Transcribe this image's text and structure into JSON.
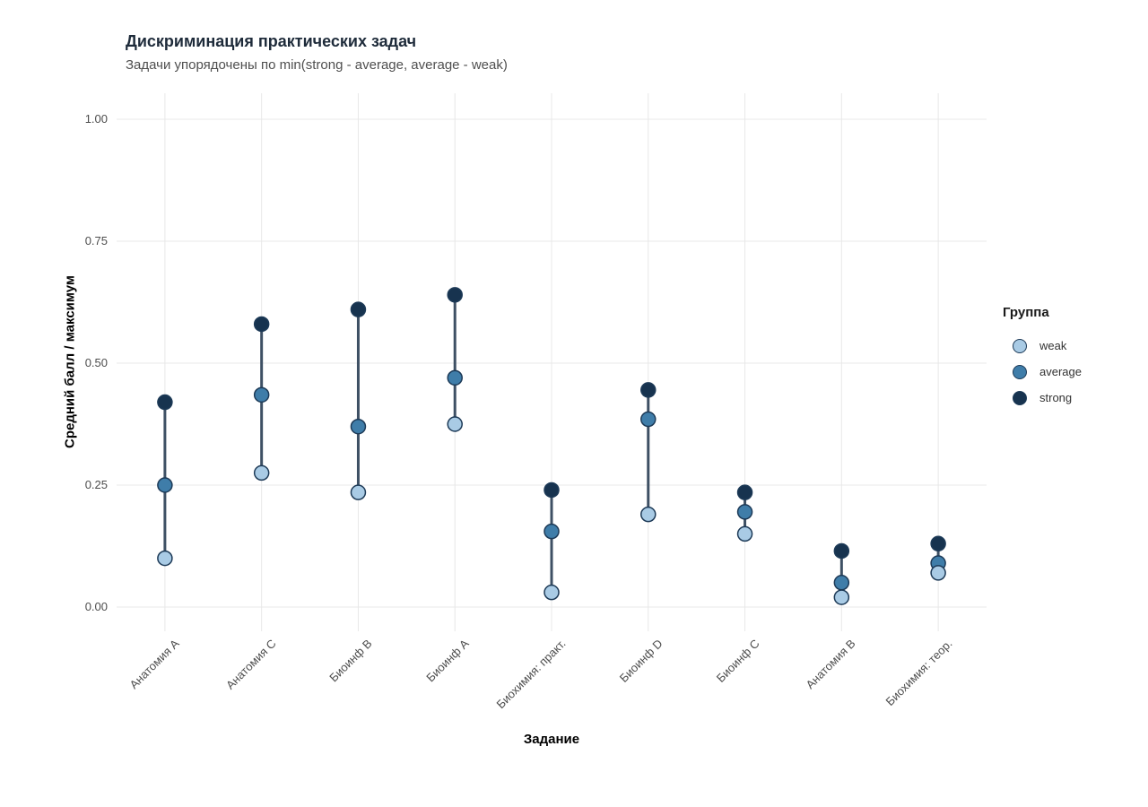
{
  "chart_data": {
    "type": "dumbbell",
    "title": "Дискриминация практических задач",
    "subtitle": "Задачи упорядочены по min(strong - average, average - weak)",
    "xlabel": "Задание",
    "ylabel": "Средний балл / максимум",
    "ylim": [
      0,
      1
    ],
    "y_ticks": [
      0,
      0.25,
      0.5,
      0.75,
      1
    ],
    "y_tick_labels": [
      "0.00",
      "0.25",
      "0.50",
      "0.75",
      "1.00"
    ],
    "categories": [
      "Анатомия A",
      "Анатомия C",
      "Биоинф B",
      "Биоинф A",
      "Биохимия: практ.",
      "Биоинф D",
      "Биоинф C",
      "Анатомия B",
      "Биохимия: теор."
    ],
    "series": [
      {
        "name": "weak",
        "color": "#a9cbe5",
        "values": [
          0.1,
          0.275,
          0.235,
          0.375,
          0.03,
          0.19,
          0.15,
          0.02,
          0.07
        ]
      },
      {
        "name": "average",
        "color": "#3f7da9",
        "values": [
          0.25,
          0.435,
          0.37,
          0.47,
          0.155,
          0.385,
          0.195,
          0.05,
          0.09
        ]
      },
      {
        "name": "strong",
        "color": "#17334f",
        "values": [
          0.42,
          0.58,
          0.61,
          0.64,
          0.24,
          0.445,
          0.235,
          0.115,
          0.13
        ]
      }
    ],
    "legend": {
      "title": "Группа",
      "position": "right"
    },
    "grid": true,
    "colors": {
      "grid_line": "#e8e8e8",
      "segment": "#3e5064",
      "point_stroke": "#1d3a57",
      "title_text": "#1e2b3a",
      "subtitle_text": "#4f4f4f",
      "tick_text": "#4d4d4d"
    }
  }
}
